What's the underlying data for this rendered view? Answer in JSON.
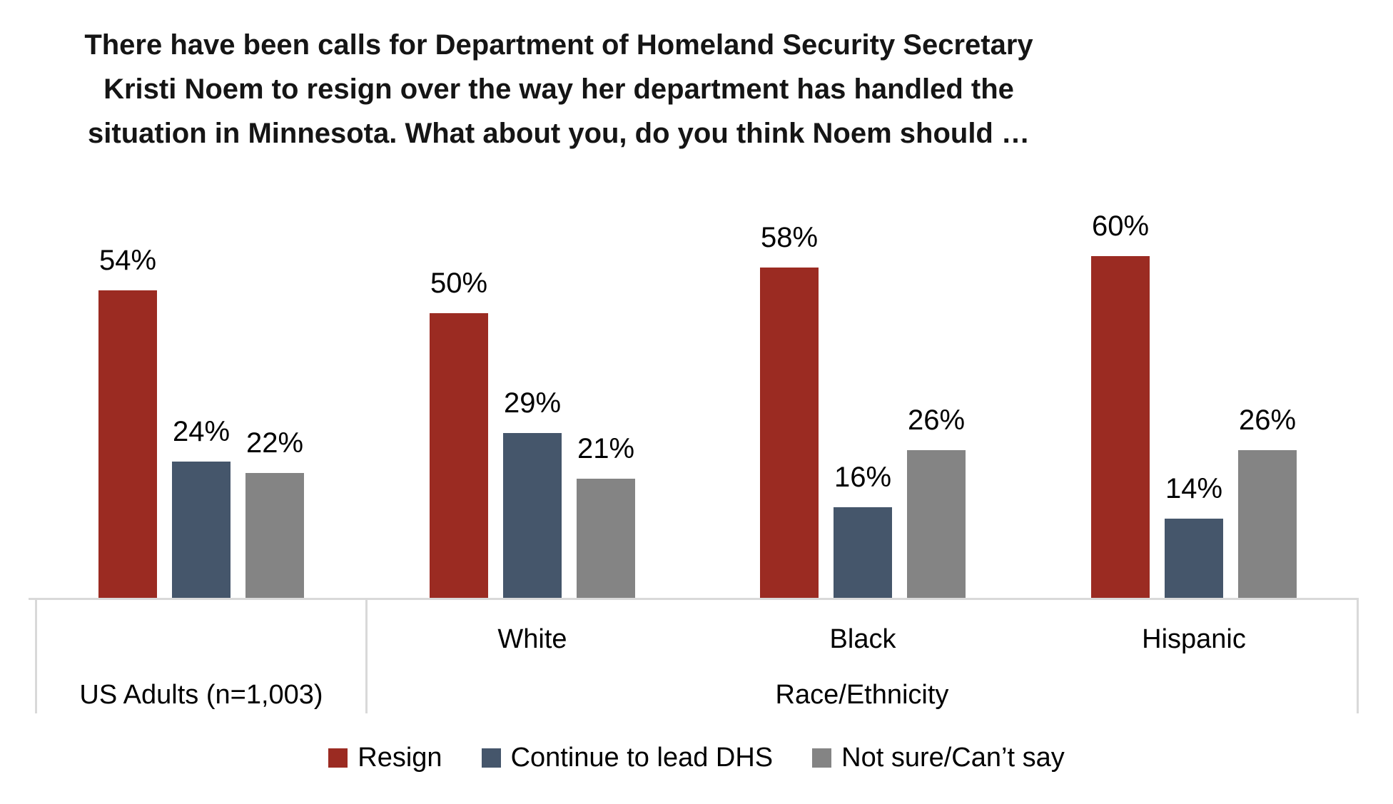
{
  "title": {
    "lines": [
      "There have been calls for Department of Homeland Security Secretary",
      "Kristi Noem to resign over the way her department has handled the",
      "situation in Minnesota. What about you, do you think Noem should …"
    ]
  },
  "chart_data": {
    "type": "bar",
    "categories": [
      "US Adults (n=1,003)",
      "White",
      "Black",
      "Hispanic"
    ],
    "series": [
      {
        "name": "Resign",
        "color": "#9b2b22",
        "values": [
          54,
          50,
          58,
          60
        ]
      },
      {
        "name": "Continue to lead DHS",
        "color": "#45566b",
        "values": [
          24,
          29,
          16,
          14
        ]
      },
      {
        "name": "Not sure/Can’t say",
        "color": "#848484",
        "values": [
          22,
          21,
          26,
          26
        ]
      }
    ],
    "value_suffix": "%",
    "value_labels": true,
    "xlabel_sections": [
      {
        "label": "",
        "categories": [
          "US Adults (n=1,003)"
        ]
      },
      {
        "label": "Race/Ethnicity",
        "categories": [
          "White",
          "Black",
          "Hispanic"
        ]
      }
    ],
    "ylim": [
      0,
      100
    ],
    "grid": false,
    "legend_position": "bottom",
    "axis_line_color": "#d9d9d9",
    "label_color": "#000000"
  }
}
